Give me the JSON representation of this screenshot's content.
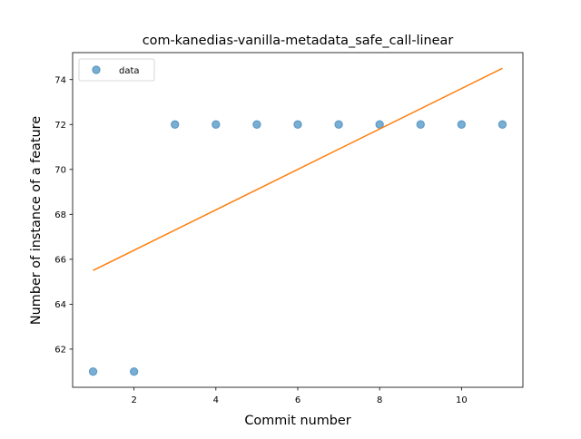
{
  "chart_data": {
    "type": "scatter",
    "title": "com-kanedias-vanilla-metadata_safe_call-linear",
    "xlabel": "Commit number",
    "ylabel": "Number of instance of a feature",
    "xlim": [
      0.5,
      11.5
    ],
    "ylim": [
      60.3,
      75.2
    ],
    "x_ticks": [
      2,
      4,
      6,
      8,
      10
    ],
    "y_ticks": [
      62,
      64,
      66,
      68,
      70,
      72,
      74
    ],
    "grid": false,
    "legend_position": "upper-left",
    "series": [
      {
        "name": "data",
        "kind": "scatter",
        "color": "#1f77b4",
        "x": [
          1,
          2,
          3,
          4,
          5,
          6,
          7,
          8,
          9,
          10,
          11
        ],
        "y": [
          61,
          61,
          72,
          72,
          72,
          72,
          72,
          72,
          72,
          72,
          72
        ]
      },
      {
        "kind": "line",
        "color": "#ff7f0e",
        "x": [
          1,
          11
        ],
        "y": [
          65.5,
          74.5
        ]
      }
    ]
  }
}
